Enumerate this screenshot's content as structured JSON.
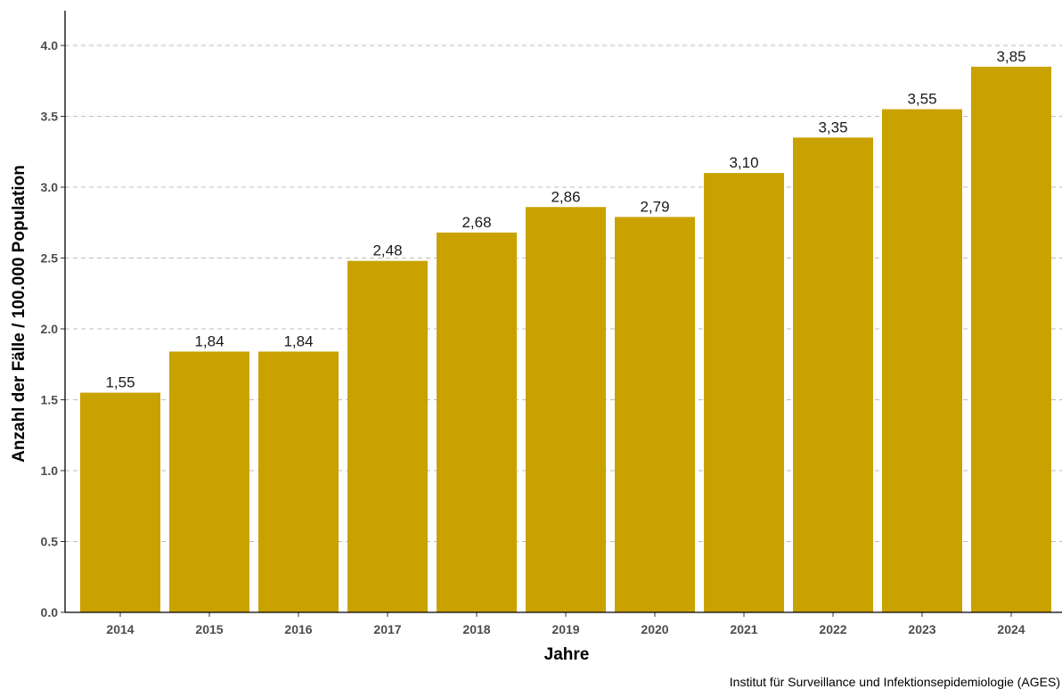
{
  "chart_data": {
    "type": "bar",
    "categories": [
      "2014",
      "2015",
      "2016",
      "2017",
      "2018",
      "2019",
      "2020",
      "2021",
      "2022",
      "2023",
      "2024"
    ],
    "values": [
      1.55,
      1.84,
      1.84,
      2.48,
      2.68,
      2.86,
      2.79,
      3.1,
      3.35,
      3.55,
      3.85
    ],
    "value_labels": [
      "1,55",
      "1,84",
      "1,84",
      "2,48",
      "2,68",
      "2,86",
      "2,79",
      "3,10",
      "3,35",
      "3,55",
      "3,85"
    ],
    "xlabel": "Jahre",
    "ylabel": "Anzahl der Fälle / 100.000 Population",
    "ylim": [
      0,
      4.2
    ],
    "yticks": [
      "0.0",
      "0.5",
      "1.0",
      "1.5",
      "2.0",
      "2.5",
      "3.0",
      "3.5",
      "4.0"
    ],
    "grid": "horizontal dashed",
    "bar_color": "#C9A200",
    "caption": "Institut für Surveillance und Infektionsepidemiologie (AGES)"
  }
}
